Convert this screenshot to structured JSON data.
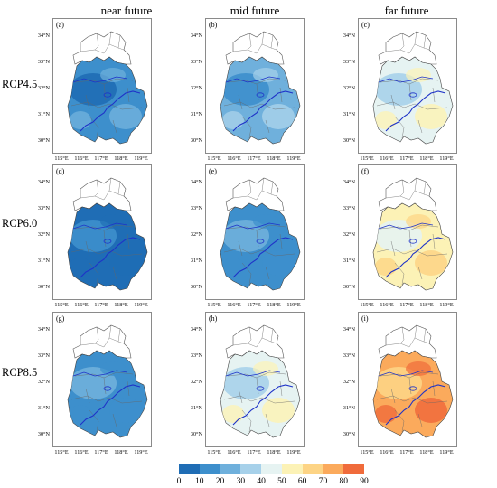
{
  "columns": [
    "near future",
    "mid future",
    "far future"
  ],
  "rows": [
    "RCP4.5",
    "RCP6.0",
    "RCP8.5"
  ],
  "panels": [
    {
      "label": "(a)",
      "scheme": "a"
    },
    {
      "label": "(b)",
      "scheme": "b"
    },
    {
      "label": "(c)",
      "scheme": "c"
    },
    {
      "label": "(d)",
      "scheme": "d"
    },
    {
      "label": "(e)",
      "scheme": "e"
    },
    {
      "label": "(f)",
      "scheme": "f"
    },
    {
      "label": "(g)",
      "scheme": "g"
    },
    {
      "label": "(h)",
      "scheme": "h"
    },
    {
      "label": "(i)",
      "scheme": "i"
    }
  ],
  "lat_labels": [
    "34°N",
    "33°N",
    "32°N",
    "31°N",
    "30°N"
  ],
  "lon_labels": [
    "115°E",
    "116°E",
    "117°E",
    "118°E",
    "119°E"
  ],
  "colorbar": {
    "ticks": [
      "0",
      "10",
      "20",
      "30",
      "40",
      "50",
      "60",
      "70",
      "80",
      "90"
    ],
    "colors": [
      "#1f6db5",
      "#3d8fcc",
      "#6fb0dc",
      "#a7d1ea",
      "#e6f3f2",
      "#fcf2b6",
      "#fdd485",
      "#fbaa5c",
      "#f06b3b"
    ]
  }
}
